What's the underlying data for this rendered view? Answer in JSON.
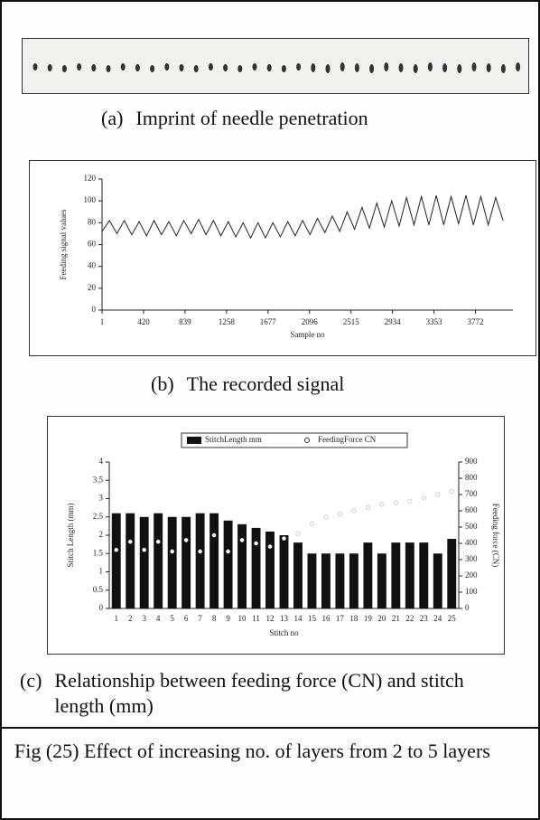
{
  "panel_a": {
    "label": "(a)",
    "caption": "Imprint of needle penetration"
  },
  "panel_b": {
    "label": "(b)",
    "caption": "The recorded signal"
  },
  "panel_c": {
    "label": "(c)",
    "caption": "Relationship between feeding force (CN) and stitch length (mm)"
  },
  "figure_caption": "Fig (25) Effect of increasing no. of layers from 2 to 5 layers",
  "chart_data": [
    {
      "type": "line",
      "x_label": "Sample no",
      "y_label": "Feeding signal values",
      "x": [
        1,
        76,
        151,
        226,
        301,
        376,
        451,
        526,
        601,
        676,
        751,
        826,
        901,
        976,
        1051,
        1126,
        1201,
        1276,
        1351,
        1426,
        1501,
        1576,
        1651,
        1726,
        1801,
        1876,
        1951,
        2026,
        2101,
        2176,
        2251,
        2326,
        2401,
        2476,
        2551,
        2626,
        2701,
        2776,
        2851,
        2926,
        3001,
        3076,
        3151,
        3226,
        3301,
        3376,
        3451,
        3526,
        3601,
        3676,
        3751,
        3826,
        3901,
        3976,
        4051
      ],
      "series": [
        {
          "name": "signal",
          "color": "#222222",
          "values": [
            72,
            82,
            70,
            82,
            69,
            81,
            68,
            82,
            69,
            81,
            68,
            82,
            70,
            83,
            69,
            82,
            68,
            81,
            67,
            80,
            66,
            80,
            66,
            80,
            67,
            81,
            68,
            82,
            69,
            84,
            71,
            86,
            72,
            90,
            74,
            94,
            75,
            98,
            76,
            100,
            77,
            103,
            78,
            104,
            78,
            105,
            78,
            104,
            79,
            105,
            78,
            104,
            78,
            103,
            82
          ]
        }
      ],
      "xlim": [
        1,
        4150
      ],
      "xticks": [
        1,
        420,
        839,
        1258,
        1677,
        2096,
        2515,
        2934,
        3353,
        3772
      ],
      "ylim": [
        0,
        120
      ],
      "yticks": [
        0,
        20,
        40,
        60,
        80,
        100,
        120
      ]
    },
    {
      "type": "bar",
      "x_label": "Stitch no",
      "y_label": "Stitch Length (mm)",
      "y2_label": "Feeding force (CN)",
      "categories": [
        "1",
        "2",
        "3",
        "4",
        "5",
        "6",
        "7",
        "8",
        "9",
        "10",
        "11",
        "12",
        "13",
        "14",
        "15",
        "16",
        "17",
        "18",
        "19",
        "20",
        "21",
        "22",
        "23",
        "24",
        "25"
      ],
      "series": [
        {
          "name": "StitchLength mm",
          "color": "#111111",
          "style": "bars",
          "values": [
            2.6,
            2.6,
            2.5,
            2.6,
            2.5,
            2.5,
            2.6,
            2.6,
            2.4,
            2.3,
            2.2,
            2.1,
            2.0,
            1.8,
            1.5,
            1.5,
            1.5,
            1.5,
            1.8,
            1.5,
            1.8,
            1.8,
            1.8,
            1.5,
            1.9
          ]
        },
        {
          "name": "FeedingForce CN",
          "color": "#ffffff",
          "style": "markers",
          "axis": "y2",
          "values": [
            360,
            410,
            360,
            410,
            350,
            420,
            350,
            450,
            350,
            420,
            400,
            380,
            430,
            460,
            520,
            560,
            580,
            600,
            620,
            640,
            650,
            660,
            680,
            700,
            720
          ]
        }
      ],
      "ylim": [
        0,
        4
      ],
      "yticks": [
        0,
        0.5,
        1,
        1.5,
        2,
        2.5,
        3,
        3.5,
        4
      ],
      "y2lim": [
        0,
        900
      ],
      "y2ticks": [
        0,
        100,
        200,
        300,
        400,
        500,
        600,
        700,
        800,
        900
      ]
    }
  ]
}
